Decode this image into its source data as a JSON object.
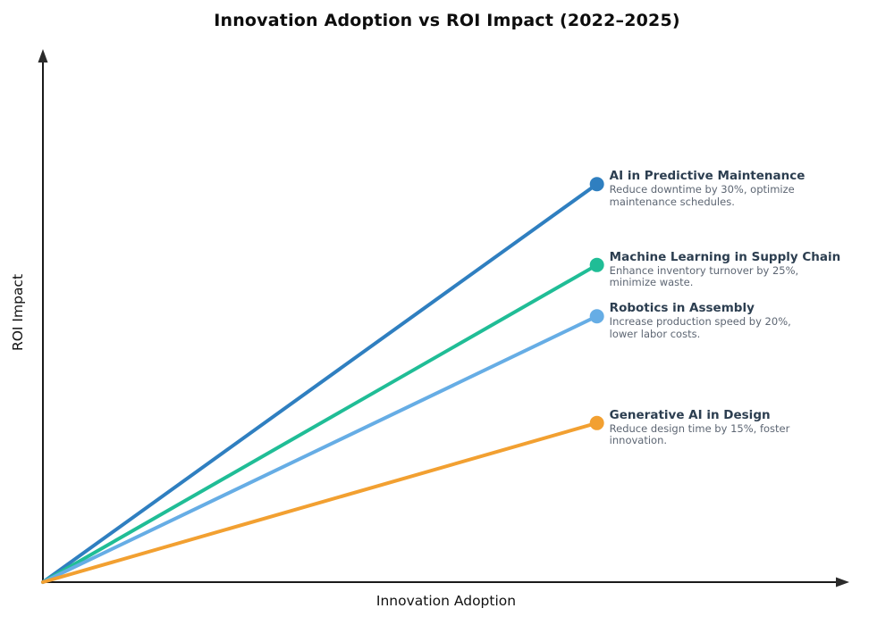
{
  "page": {
    "title": "Innovation Adoption vs ROI Impact (2022–2025)"
  },
  "chart_data": {
    "type": "line",
    "title": "Innovation Adoption vs ROI Impact (2022–2025)",
    "xlabel": "Innovation Adoption",
    "ylabel": "ROI Impact",
    "axes": {
      "style": "schematic-arrows",
      "tick_labels": "none",
      "grid": false,
      "axis_color": "#1a1a1a",
      "x_range_norm": [
        0,
        1
      ],
      "y_range_norm": [
        0,
        1
      ]
    },
    "legend_position": "inline-right-of-endpoint",
    "series": [
      {
        "name": "AI in Predictive Maintenance",
        "desc_lines": [
          "Reduce downtime by 30%, optimize",
          "maintenance schedules."
        ],
        "color": "#2f7fc0",
        "start": {
          "x": 0.0,
          "y": 0.0
        },
        "end": {
          "x": 0.687,
          "y": 0.753
        }
      },
      {
        "name": "Machine Learning in Supply Chain",
        "desc_lines": [
          "Enhance inventory turnover by 25%,",
          "minimize waste."
        ],
        "color": "#20bd96",
        "start": {
          "x": 0.0,
          "y": 0.0
        },
        "end": {
          "x": 0.687,
          "y": 0.6
        }
      },
      {
        "name": "Robotics in Assembly",
        "desc_lines": [
          "Increase production speed by 20%,",
          "lower labor costs."
        ],
        "color": "#66ade5",
        "start": {
          "x": 0.0,
          "y": 0.0
        },
        "end": {
          "x": 0.687,
          "y": 0.503
        }
      },
      {
        "name": "Generative AI in Design",
        "desc_lines": [
          "Reduce design time by 15%, foster",
          "innovation."
        ],
        "color": "#f2a031",
        "start": {
          "x": 0.0,
          "y": 0.0
        },
        "end": {
          "x": 0.687,
          "y": 0.301
        }
      }
    ],
    "styles": {
      "line_width": 4,
      "dot_radius": 8,
      "label_title_color": "#2c3e50",
      "label_desc_color": "#5d6673",
      "title_color": "#0d0d0d"
    }
  }
}
